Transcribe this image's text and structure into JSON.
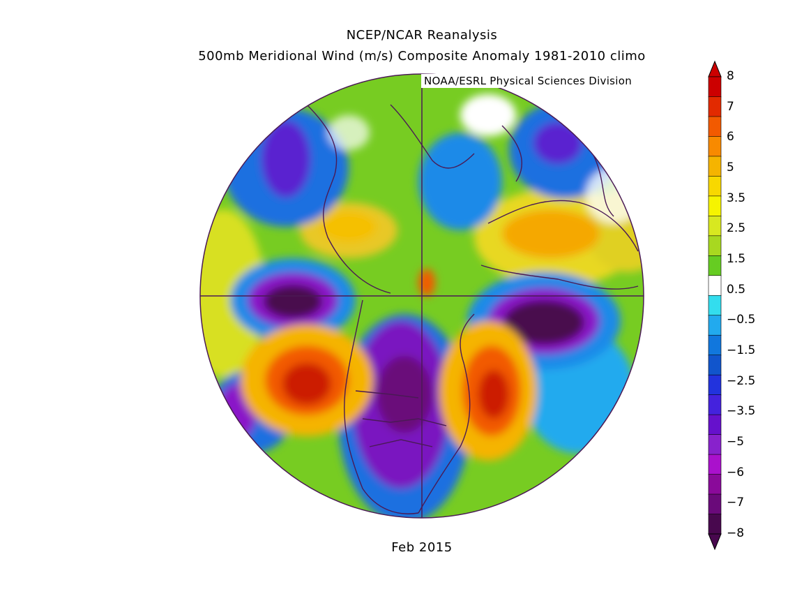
{
  "header": {
    "title_line1": "NCEP/NCAR Reanalysis",
    "title_line2": "500mb Meridional Wind (m/s) Composite Anomaly 1981-2010 climo",
    "credit": "NOAA/ESRL Physical Sciences Division"
  },
  "footer": {
    "date_label": "Feb 2015"
  },
  "map": {
    "projection": "north polar stereographic",
    "field": "500mb meridional wind anomaly",
    "units": "m/s"
  },
  "colorbar": {
    "labels": [
      "8",
      "7",
      "6",
      "5",
      "3.5",
      "2.5",
      "1.5",
      "0.5",
      "-0.5",
      "-1.5",
      "-2.5",
      "-3.5",
      "-5",
      "-6",
      "-7",
      "-8"
    ],
    "colors": [
      "#cc0000",
      "#e22a00",
      "#f25a00",
      "#f88a00",
      "#f5b400",
      "#f8d800",
      "#f6f400",
      "#d8e820",
      "#a8d820",
      "#66cc22",
      "#ffffff",
      "#33ddee",
      "#22aaee",
      "#1177dd",
      "#1155cc",
      "#2233dd",
      "#4422dd",
      "#6611cc",
      "#8822cc",
      "#aa11cc",
      "#8a0a9a",
      "#6a0a7a",
      "#48084e"
    ]
  }
}
